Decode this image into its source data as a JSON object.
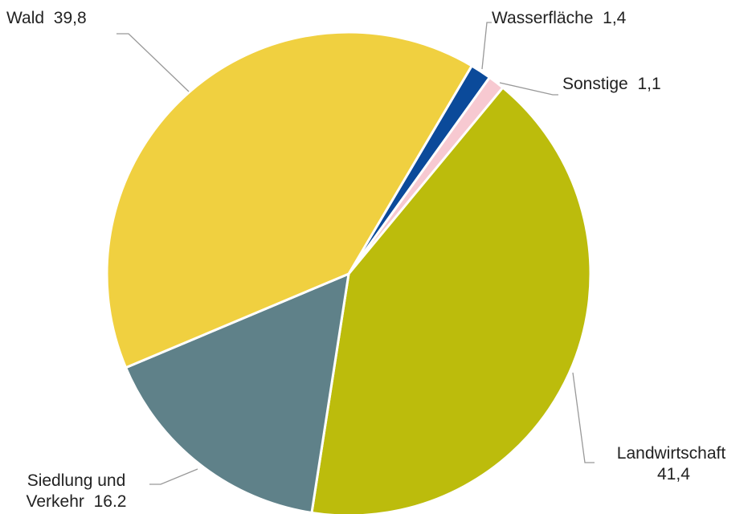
{
  "chart_data": {
    "type": "pie",
    "categories": [
      "Wasserfläche",
      "Sonstige",
      "Landwirtschaft",
      "Siedlung und Verkehr",
      "Wald"
    ],
    "values": [
      1.4,
      1.1,
      41.4,
      16.2,
      39.8
    ],
    "value_labels": [
      "1,4",
      "1,1",
      "41,4",
      "16.2",
      "39,8"
    ],
    "colors": [
      "#0b4a9a",
      "#f7c9d1",
      "#bcbc0c",
      "#5f8189",
      "#f0d040"
    ]
  }
}
